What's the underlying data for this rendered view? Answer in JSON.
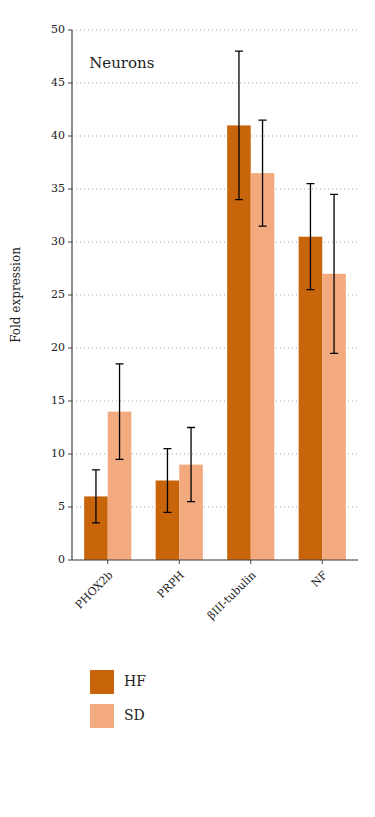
{
  "chart_data": {
    "type": "bar",
    "title": "Neurons",
    "ylabel": "Fold expression",
    "categories": [
      "PHOX2b",
      "PRPH",
      "βIII-tubulin",
      "NF"
    ],
    "series": [
      {
        "name": "HF",
        "color": "#C8650A",
        "values": [
          6.0,
          7.5,
          41.0,
          30.5
        ],
        "errors": [
          2.5,
          3.0,
          7.0,
          5.0
        ]
      },
      {
        "name": "SD",
        "color": "#F2AA7E",
        "values": [
          14.0,
          9.0,
          36.5,
          27.0
        ],
        "errors": [
          4.5,
          3.5,
          5.0,
          7.5
        ]
      }
    ],
    "ylim": [
      0,
      50
    ],
    "yticks": [
      0,
      5,
      10,
      15,
      20,
      25,
      30,
      35,
      40,
      45,
      50
    ],
    "grid": true,
    "legend": "bottom"
  }
}
